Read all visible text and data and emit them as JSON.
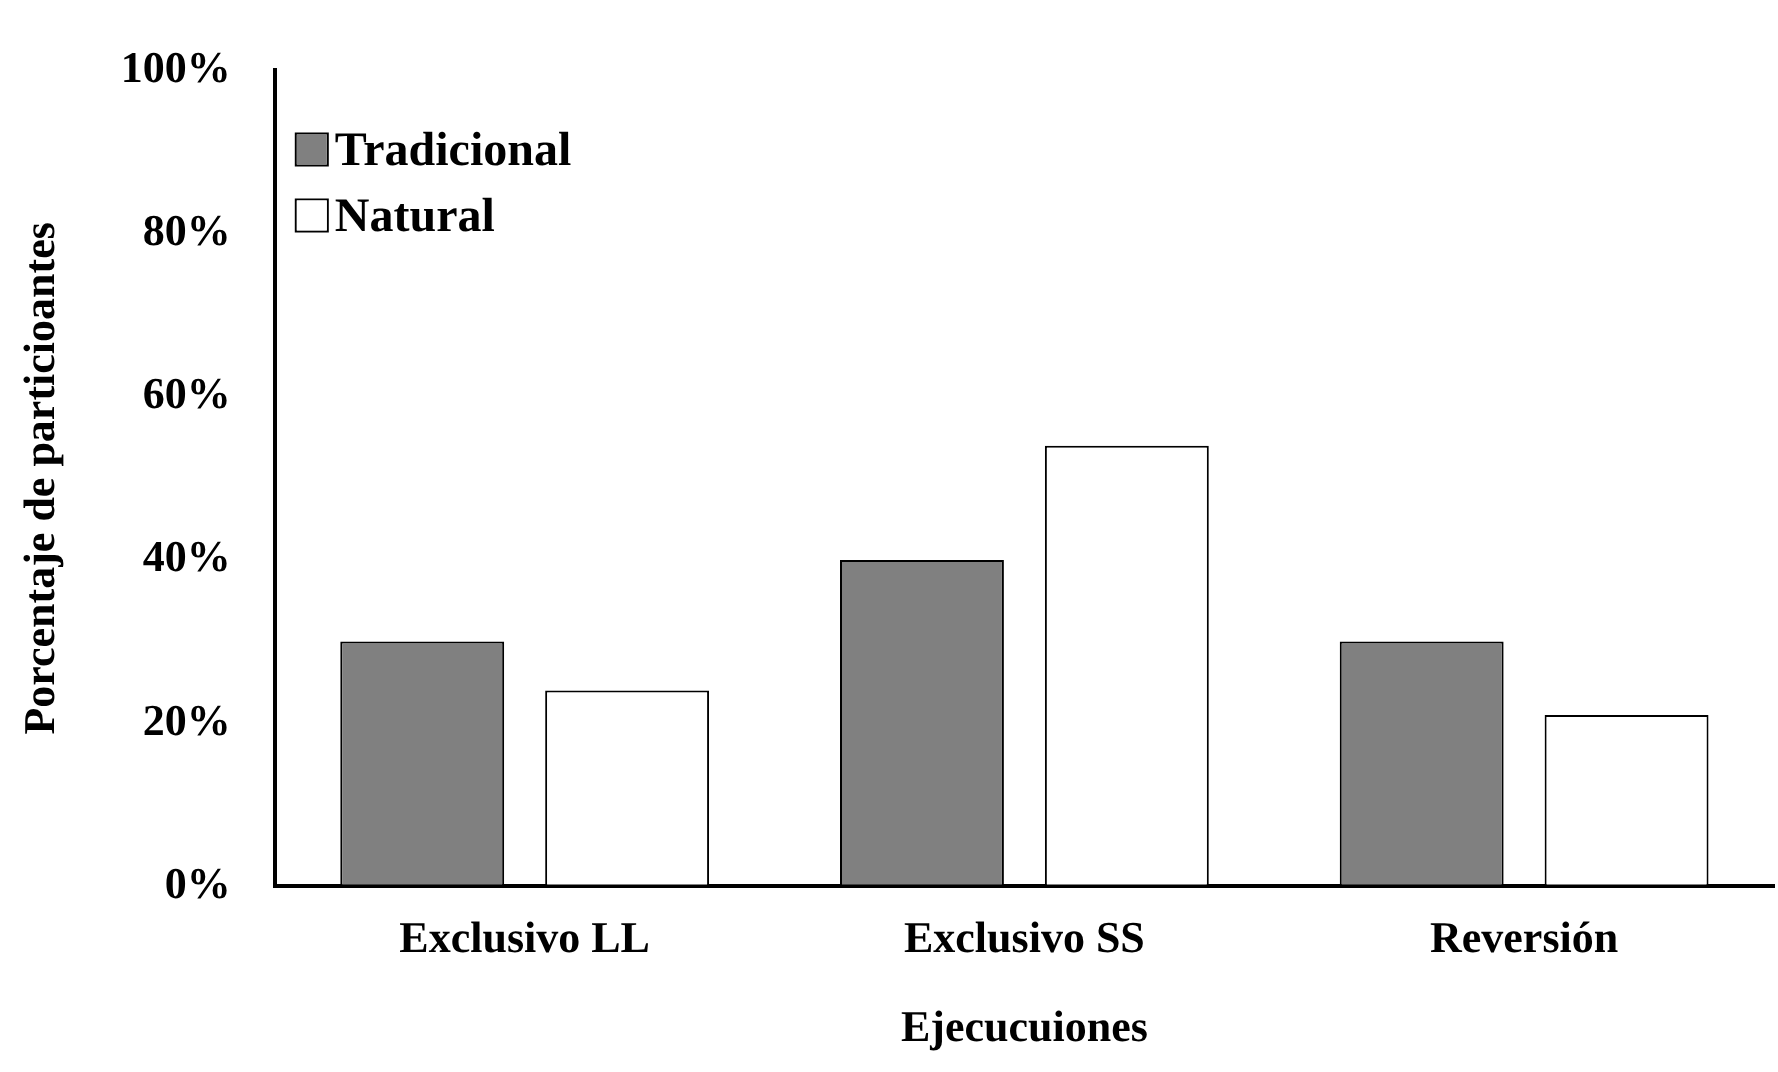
{
  "chart_data": {
    "type": "bar",
    "xlabel": "Ejecucuiones",
    "ylabel": "Porcentaje de particioantes",
    "categories": [
      "Exclusivo LL",
      "Exclusivo SS",
      "Reversión"
    ],
    "series": [
      {
        "name": "Tradicional",
        "color": "#808080",
        "values": [
          30,
          40,
          30
        ]
      },
      {
        "name": "Natural",
        "color": "#ffffff",
        "values": [
          24,
          54,
          21
        ]
      }
    ],
    "ylim": [
      0,
      100
    ],
    "yticks": [
      {
        "value": 0,
        "label": "0%"
      },
      {
        "value": 20,
        "label": "20%"
      },
      {
        "value": 40,
        "label": "40%"
      },
      {
        "value": 60,
        "label": "60%"
      },
      {
        "value": 80,
        "label": "80%"
      },
      {
        "value": 100,
        "label": "100%"
      }
    ],
    "grid": false,
    "legend": "top left"
  }
}
